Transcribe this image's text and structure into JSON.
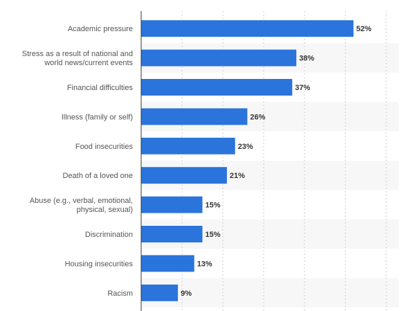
{
  "chart_data": {
    "type": "bar",
    "orientation": "horizontal",
    "categories": [
      [
        "Academic pressure"
      ],
      [
        "Stress as a result of national and",
        "world news/current events"
      ],
      [
        "Financial difficulties"
      ],
      [
        "Illness (family or self)"
      ],
      [
        "Food insecurities"
      ],
      [
        "Death of a loved one"
      ],
      [
        "Abuse (e.g., verbal, emotional,",
        "physical, sexual)"
      ],
      [
        "Discrimination"
      ],
      [
        "Housing insecurities"
      ],
      [
        "Racism"
      ]
    ],
    "values": [
      52,
      38,
      37,
      26,
      23,
      21,
      15,
      15,
      13,
      9
    ],
    "value_labels": [
      "52%",
      "38%",
      "37%",
      "26%",
      "23%",
      "21%",
      "15%",
      "15%",
      "13%",
      "9%"
    ],
    "xlim": [
      0,
      60
    ],
    "grid": "vertical-dashed",
    "title": "",
    "xlabel": "",
    "ylabel": ""
  },
  "colors": {
    "bar": "#2a74db",
    "band": "#f7f7f7",
    "grid": "#cccccc",
    "axis": "#333333"
  }
}
